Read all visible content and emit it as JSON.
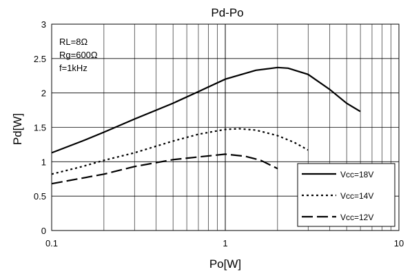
{
  "chart_data": {
    "type": "line",
    "title": "Pd-Po",
    "xlabel": "Po[W]",
    "ylabel": "Pd[W]",
    "x_scale": "log",
    "xlim": [
      0.1,
      10
    ],
    "ylim": [
      0,
      3
    ],
    "x_ticks": [
      "0.1",
      "1",
      "10"
    ],
    "y_ticks": [
      "0",
      "0.5",
      "1",
      "1.5",
      "2",
      "2.5",
      "3"
    ],
    "grid": true,
    "legend_position": "bottom-right",
    "conditions": [
      "RL=8Ω",
      "Rg=600Ω",
      "f=1kHz"
    ],
    "series": [
      {
        "name": "Vcc=18V",
        "style": "solid",
        "x": [
          0.1,
          0.15,
          0.2,
          0.3,
          0.5,
          0.7,
          1.0,
          1.5,
          2.0,
          2.3,
          3.0,
          4.0,
          5.0,
          6.0
        ],
        "y": [
          1.13,
          1.3,
          1.43,
          1.62,
          1.85,
          2.02,
          2.2,
          2.33,
          2.37,
          2.36,
          2.27,
          2.05,
          1.85,
          1.73
        ]
      },
      {
        "name": "Vcc=14V",
        "style": "dotted",
        "x": [
          0.1,
          0.15,
          0.2,
          0.3,
          0.5,
          0.7,
          1.0,
          1.2,
          1.5,
          2.0,
          2.5,
          3.0
        ],
        "y": [
          0.82,
          0.93,
          1.02,
          1.13,
          1.3,
          1.4,
          1.47,
          1.48,
          1.46,
          1.38,
          1.28,
          1.17
        ]
      },
      {
        "name": "Vcc=12V",
        "style": "dashed",
        "x": [
          0.1,
          0.2,
          0.3,
          0.5,
          0.7,
          1.0,
          1.3,
          1.6,
          2.0
        ],
        "y": [
          0.68,
          0.82,
          0.93,
          1.03,
          1.07,
          1.11,
          1.08,
          1.02,
          0.9
        ]
      }
    ]
  }
}
